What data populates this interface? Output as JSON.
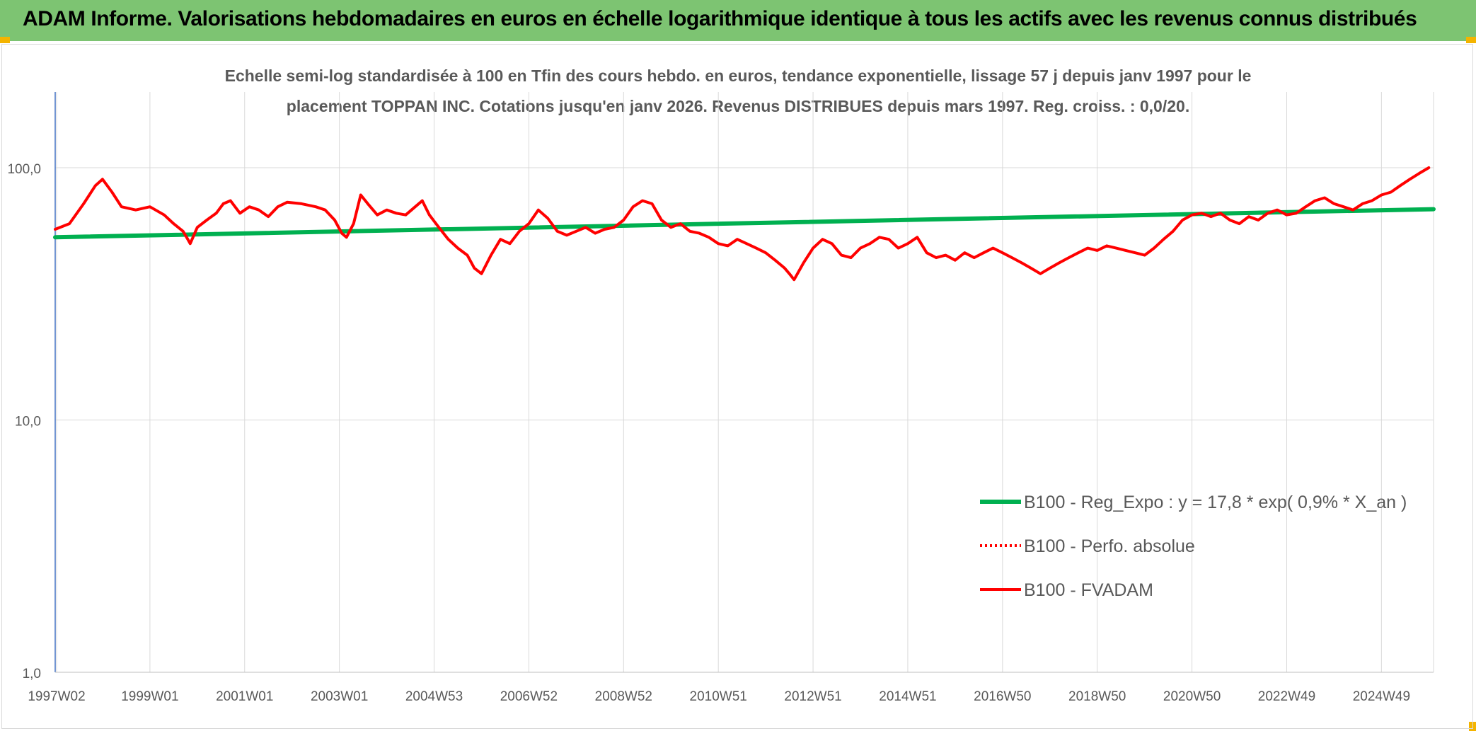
{
  "header": {
    "title": "ADAM Informe. Valorisations hebdomadaires en euros en échelle logarithmique identique à tous les actifs avec les revenus connus distribués"
  },
  "colors": {
    "header_bg": "#7dc472",
    "corner_accent": "#f4b400",
    "regression": "#00b050",
    "fvadam": "#ff0000",
    "perfo": "#ff0000",
    "grid": "#d9d9d9",
    "axis": "#4472c4",
    "text": "#595959"
  },
  "chart_data": {
    "type": "line",
    "title_lines": [
      "Echelle semi-log standardisée à 100 en Tfin des cours hebdo. en euros, tendance exponentielle, lissage 57 j depuis janv 1997 pour le",
      "placement TOPPAN INC. Cotations jusqu'en janv 2026. Revenus DISTRIBUES depuis mars 1997. Reg. croiss. : 0,0/20."
    ],
    "y_scale": "log",
    "ylim": [
      1,
      100
    ],
    "y_ticks": [
      "1,0",
      "10,0",
      "100,0"
    ],
    "x_range": [
      1997.0,
      2026.1
    ],
    "x_ticks": [
      {
        "label": "1997W02",
        "year": 1997.03
      },
      {
        "label": "1999W01",
        "year": 1999.0
      },
      {
        "label": "2001W01",
        "year": 2001.0
      },
      {
        "label": "2003W01",
        "year": 2003.0
      },
      {
        "label": "2004W53",
        "year": 2005.0
      },
      {
        "label": "2006W52",
        "year": 2007.0
      },
      {
        "label": "2008W52",
        "year": 2009.0
      },
      {
        "label": "2010W51",
        "year": 2011.0
      },
      {
        "label": "2012W51",
        "year": 2013.0
      },
      {
        "label": "2014W51",
        "year": 2015.0
      },
      {
        "label": "2016W50",
        "year": 2017.0
      },
      {
        "label": "2018W50",
        "year": 2019.0
      },
      {
        "label": "2020W50",
        "year": 2021.0
      },
      {
        "label": "2022W49",
        "year": 2023.0
      },
      {
        "label": "2024W49",
        "year": 2025.0
      }
    ],
    "legend_position": "lower-right",
    "series": [
      {
        "name": "B100 - Reg_Expo : y = 17,8 * exp( 0,9% *  X_an )",
        "style": "solid",
        "points": [
          [
            1997.0,
            53.0
          ],
          [
            2026.1,
            68.5
          ]
        ]
      },
      {
        "name": "B100 - Perfo. absolue",
        "style": "dotted",
        "points": []
      },
      {
        "name": "B100 - FVADAM",
        "style": "solid",
        "points": [
          [
            1997.0,
            57
          ],
          [
            1997.3,
            60
          ],
          [
            1997.6,
            72
          ],
          [
            1997.85,
            85
          ],
          [
            1998.0,
            90
          ],
          [
            1998.2,
            80
          ],
          [
            1998.4,
            70
          ],
          [
            1998.7,
            68
          ],
          [
            1999.0,
            70
          ],
          [
            1999.3,
            65
          ],
          [
            1999.5,
            60
          ],
          [
            1999.7,
            56
          ],
          [
            1999.8,
            52
          ],
          [
            1999.85,
            50
          ],
          [
            2000.0,
            58
          ],
          [
            2000.2,
            62
          ],
          [
            2000.4,
            66
          ],
          [
            2000.55,
            72
          ],
          [
            2000.7,
            74
          ],
          [
            2000.9,
            66
          ],
          [
            2001.1,
            70
          ],
          [
            2001.3,
            68
          ],
          [
            2001.5,
            64
          ],
          [
            2001.7,
            70
          ],
          [
            2001.9,
            73
          ],
          [
            2002.2,
            72
          ],
          [
            2002.5,
            70
          ],
          [
            2002.7,
            68
          ],
          [
            2002.9,
            62
          ],
          [
            2003.05,
            55
          ],
          [
            2003.15,
            53
          ],
          [
            2003.3,
            60
          ],
          [
            2003.45,
            78
          ],
          [
            2003.6,
            72
          ],
          [
            2003.8,
            65
          ],
          [
            2004.0,
            68
          ],
          [
            2004.2,
            66
          ],
          [
            2004.4,
            65
          ],
          [
            2004.6,
            70
          ],
          [
            2004.75,
            74
          ],
          [
            2004.9,
            65
          ],
          [
            2005.1,
            58
          ],
          [
            2005.3,
            52
          ],
          [
            2005.5,
            48
          ],
          [
            2005.7,
            45
          ],
          [
            2005.85,
            40
          ],
          [
            2006.0,
            38
          ],
          [
            2006.2,
            45
          ],
          [
            2006.4,
            52
          ],
          [
            2006.6,
            50
          ],
          [
            2006.8,
            56
          ],
          [
            2007.0,
            60
          ],
          [
            2007.2,
            68
          ],
          [
            2007.4,
            63
          ],
          [
            2007.6,
            56
          ],
          [
            2007.8,
            54
          ],
          [
            2008.0,
            56
          ],
          [
            2008.2,
            58
          ],
          [
            2008.4,
            55
          ],
          [
            2008.6,
            57
          ],
          [
            2008.8,
            58
          ],
          [
            2009.0,
            62
          ],
          [
            2009.2,
            70
          ],
          [
            2009.4,
            74
          ],
          [
            2009.6,
            72
          ],
          [
            2009.8,
            62
          ],
          [
            2010.0,
            58
          ],
          [
            2010.2,
            60
          ],
          [
            2010.4,
            56
          ],
          [
            2010.6,
            55
          ],
          [
            2010.8,
            53
          ],
          [
            2011.0,
            50
          ],
          [
            2011.2,
            49
          ],
          [
            2011.4,
            52
          ],
          [
            2011.6,
            50
          ],
          [
            2011.8,
            48
          ],
          [
            2012.0,
            46
          ],
          [
            2012.2,
            43
          ],
          [
            2012.4,
            40
          ],
          [
            2012.5,
            38
          ],
          [
            2012.6,
            36
          ],
          [
            2012.8,
            42
          ],
          [
            2013.0,
            48
          ],
          [
            2013.2,
            52
          ],
          [
            2013.4,
            50
          ],
          [
            2013.6,
            45
          ],
          [
            2013.8,
            44
          ],
          [
            2014.0,
            48
          ],
          [
            2014.2,
            50
          ],
          [
            2014.4,
            53
          ],
          [
            2014.6,
            52
          ],
          [
            2014.8,
            48
          ],
          [
            2015.0,
            50
          ],
          [
            2015.2,
            53
          ],
          [
            2015.4,
            46
          ],
          [
            2015.6,
            44
          ],
          [
            2015.8,
            45
          ],
          [
            2016.0,
            43
          ],
          [
            2016.2,
            46
          ],
          [
            2016.4,
            44
          ],
          [
            2016.6,
            46
          ],
          [
            2016.8,
            48
          ],
          [
            2017.0,
            46
          ],
          [
            2017.2,
            44
          ],
          [
            2017.4,
            42
          ],
          [
            2017.6,
            40
          ],
          [
            2017.8,
            38
          ],
          [
            2018.0,
            40
          ],
          [
            2018.2,
            42
          ],
          [
            2018.4,
            44
          ],
          [
            2018.6,
            46
          ],
          [
            2018.8,
            48
          ],
          [
            2019.0,
            47
          ],
          [
            2019.2,
            49
          ],
          [
            2019.4,
            48
          ],
          [
            2019.6,
            47
          ],
          [
            2019.8,
            46
          ],
          [
            2020.0,
            45
          ],
          [
            2020.2,
            48
          ],
          [
            2020.4,
            52
          ],
          [
            2020.6,
            56
          ],
          [
            2020.8,
            62
          ],
          [
            2021.0,
            65
          ],
          [
            2021.2,
            66
          ],
          [
            2021.4,
            64
          ],
          [
            2021.6,
            66
          ],
          [
            2021.8,
            62
          ],
          [
            2022.0,
            60
          ],
          [
            2022.2,
            64
          ],
          [
            2022.4,
            62
          ],
          [
            2022.6,
            66
          ],
          [
            2022.8,
            68
          ],
          [
            2023.0,
            65
          ],
          [
            2023.2,
            66
          ],
          [
            2023.4,
            70
          ],
          [
            2023.6,
            74
          ],
          [
            2023.8,
            76
          ],
          [
            2024.0,
            72
          ],
          [
            2024.2,
            70
          ],
          [
            2024.4,
            68
          ],
          [
            2024.6,
            72
          ],
          [
            2024.8,
            74
          ],
          [
            2025.0,
            78
          ],
          [
            2025.2,
            80
          ],
          [
            2025.4,
            85
          ],
          [
            2025.6,
            90
          ],
          [
            2025.8,
            95
          ],
          [
            2026.0,
            100
          ]
        ]
      }
    ]
  }
}
